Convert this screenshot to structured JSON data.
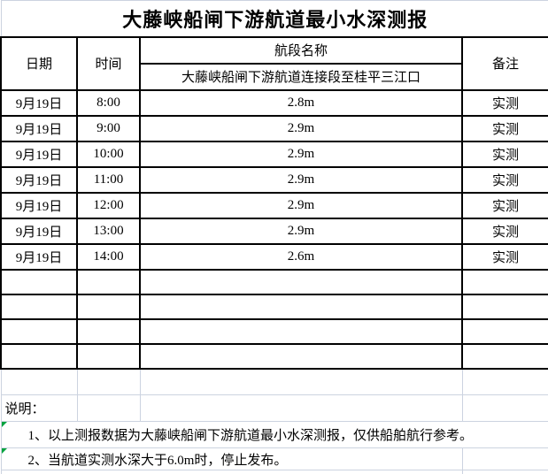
{
  "title": "大藤峡船闸下游航道最小水深测报",
  "table": {
    "headers": {
      "date": "日期",
      "time": "时间",
      "section": "航段名称",
      "remark": "备注"
    },
    "section_subtitle": "大藤峡船闸下游航道连接段至桂平三江口",
    "rows": [
      {
        "date": "9月19日",
        "time": "8:00",
        "depth": "2.8m",
        "remark": "实测"
      },
      {
        "date": "9月19日",
        "time": "9:00",
        "depth": "2.9m",
        "remark": "实测"
      },
      {
        "date": "9月19日",
        "time": "10:00",
        "depth": "2.9m",
        "remark": "实测"
      },
      {
        "date": "9月19日",
        "time": "11:00",
        "depth": "2.9m",
        "remark": "实测"
      },
      {
        "date": "9月19日",
        "time": "12:00",
        "depth": "2.9m",
        "remark": "实测"
      },
      {
        "date": "9月19日",
        "time": "13:00",
        "depth": "2.9m",
        "remark": "实测"
      },
      {
        "date": "9月19日",
        "time": "14:00",
        "depth": "2.6m",
        "remark": "实测"
      }
    ]
  },
  "notes": {
    "label": "说明：",
    "item1": "1、以上测报数据为大藤峡船闸下游航道最小水深测报，仅供船舶航行参考。",
    "item2": "2、当航道实测水深大于6.0m时，停止发布。"
  },
  "colors": {
    "table_border": "#000000",
    "gridline": "#ccd3e0",
    "error_indicator": "#00a33e",
    "text": "#000000",
    "background": "#ffffff"
  }
}
